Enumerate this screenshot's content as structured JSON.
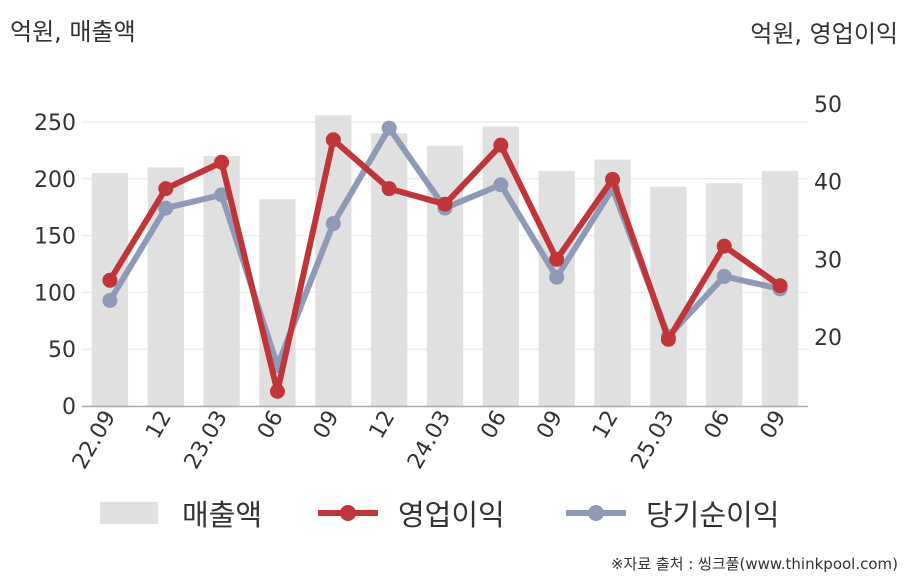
{
  "units": {
    "left": "억원, 매출액",
    "right": "억원, 영업이익"
  },
  "source": "※자료 출처 : 씽크풀(www.thinkpool.com)",
  "colors": {
    "revenue": "#e0e0e0",
    "operating_profit": "#c0353a",
    "net_income": "#8f9bb6",
    "grid": "#e6e6e6",
    "axis": "#aaaaaa"
  },
  "chart_data": {
    "type": "bar+line",
    "categories": [
      "22.09",
      "12",
      "23.03",
      "06",
      "09",
      "12",
      "24.03",
      "06",
      "09",
      "12",
      "25.03",
      "06",
      "09"
    ],
    "left_axis": {
      "ylim": [
        0,
        250
      ],
      "ticks": [
        "0",
        "50",
        "100",
        "150",
        "200",
        "250"
      ]
    },
    "right_axis": {
      "ticks": [
        "20",
        "30",
        "40",
        "50"
      ]
    },
    "grid": true,
    "legend_position": "bottom",
    "series": [
      {
        "name": "매출액",
        "type": "bar",
        "axis": "left",
        "values": [
          205,
          210,
          220,
          182,
          256,
          240,
          229,
          246,
          207,
          217,
          193,
          196,
          207
        ]
      },
      {
        "name": "영업이익",
        "type": "line",
        "axis": "right",
        "values": [
          27.3,
          39.1,
          42.5,
          13.0,
          45.4,
          39.1,
          37.1,
          44.7,
          30.0,
          40.3,
          19.7,
          31.7,
          26.6
        ]
      },
      {
        "name": "당기순이익",
        "type": "line",
        "axis": "right",
        "values": [
          24.7,
          36.6,
          38.3,
          16.3,
          34.6,
          46.9,
          36.6,
          39.6,
          27.7,
          39.1,
          20.1,
          27.8,
          26.2
        ]
      }
    ]
  }
}
